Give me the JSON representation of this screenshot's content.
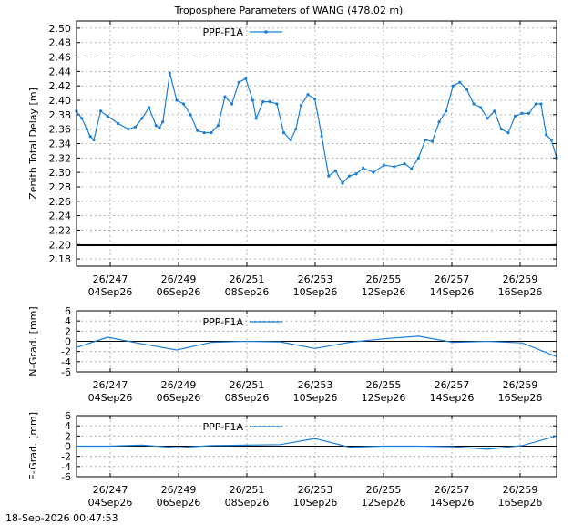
{
  "title": "Troposphere Parameters of WANG (478.02 m)",
  "timestamp": "18-Sep-2026 00:47:53",
  "colors": {
    "series": "#1a7ed6",
    "axis": "#000000",
    "grid": "#a0a0a0",
    "ref": "#000000"
  },
  "x_ticks": [
    {
      "doy": "26/247",
      "date": "04Sep26"
    },
    {
      "doy": "26/249",
      "date": "06Sep26"
    },
    {
      "doy": "26/251",
      "date": "08Sep26"
    },
    {
      "doy": "26/253",
      "date": "10Sep26"
    },
    {
      "doy": "26/255",
      "date": "12Sep26"
    },
    {
      "doy": "26/257",
      "date": "14Sep26"
    },
    {
      "doy": "26/259",
      "date": "16Sep26"
    }
  ],
  "chart_data": [
    {
      "type": "line",
      "ylabel": "Zenith Total Delay [m]",
      "xlim": [
        246.1,
        260.0
      ],
      "ylim": [
        2.17,
        2.51
      ],
      "yticks": [
        2.18,
        2.2,
        2.22,
        2.24,
        2.26,
        2.28,
        2.3,
        2.32,
        2.34,
        2.36,
        2.38,
        2.4,
        2.42,
        2.44,
        2.46,
        2.48,
        2.5
      ],
      "grid": true,
      "legend": "top-center",
      "reference_line": 2.199,
      "series": [
        {
          "name": "PPP-F1A",
          "marker": "point",
          "x": [
            246.1,
            246.25,
            246.4,
            246.5,
            246.6,
            246.8,
            247.0,
            247.3,
            247.6,
            247.8,
            248.0,
            248.2,
            248.4,
            248.5,
            248.6,
            248.8,
            249.0,
            249.2,
            249.4,
            249.6,
            249.8,
            250.0,
            250.2,
            250.4,
            250.6,
            250.8,
            251.0,
            251.2,
            251.3,
            251.5,
            251.7,
            251.9,
            252.1,
            252.3,
            252.45,
            252.6,
            252.8,
            253.0,
            253.2,
            253.4,
            253.6,
            253.8,
            254.0,
            254.2,
            254.4,
            254.7,
            255.0,
            255.3,
            255.6,
            255.8,
            256.0,
            256.2,
            256.4,
            256.6,
            256.8,
            257.0,
            257.2,
            257.4,
            257.6,
            257.8,
            258.0,
            258.2,
            258.4,
            258.6,
            258.8,
            259.0,
            259.2,
            259.4,
            259.55,
            259.7,
            259.85,
            260.0
          ],
          "y": [
            2.385,
            2.375,
            2.36,
            2.35,
            2.345,
            2.385,
            2.378,
            2.368,
            2.36,
            2.363,
            2.375,
            2.39,
            2.365,
            2.362,
            2.37,
            2.438,
            2.4,
            2.395,
            2.38,
            2.358,
            2.355,
            2.355,
            2.365,
            2.405,
            2.395,
            2.425,
            2.43,
            2.4,
            2.375,
            2.398,
            2.398,
            2.395,
            2.355,
            2.345,
            2.36,
            2.393,
            2.408,
            2.402,
            2.35,
            2.295,
            2.302,
            2.285,
            2.295,
            2.298,
            2.306,
            2.3,
            2.31,
            2.308,
            2.312,
            2.305,
            2.32,
            2.345,
            2.343,
            2.37,
            2.385,
            2.42,
            2.425,
            2.415,
            2.395,
            2.39,
            2.375,
            2.385,
            2.36,
            2.355,
            2.378,
            2.382,
            2.382,
            2.395,
            2.395,
            2.352,
            2.345,
            2.32
          ]
        }
      ]
    },
    {
      "type": "line",
      "ylabel": "N-Grad. [mm]",
      "xlim": [
        246.1,
        260.0
      ],
      "ylim": [
        -6,
        6
      ],
      "yticks": [
        -6,
        -4,
        -2,
        0,
        2,
        4,
        6
      ],
      "grid": true,
      "legend": "top-center",
      "reference_line": 0,
      "series": [
        {
          "name": "PPP-F1A",
          "x": [
            246.1,
            247.0,
            248.0,
            249.0,
            250.0,
            251.0,
            252.0,
            253.0,
            254.0,
            255.0,
            256.0,
            257.0,
            258.0,
            259.0,
            260.0
          ],
          "y": [
            -1.2,
            0.8,
            -0.5,
            -1.7,
            -0.2,
            0.0,
            -0.1,
            -1.4,
            -0.2,
            0.5,
            1.0,
            -0.2,
            0.0,
            -0.3,
            -3.0
          ]
        }
      ]
    },
    {
      "type": "line",
      "ylabel": "E-Grad. [mm]",
      "xlim": [
        246.1,
        260.0
      ],
      "ylim": [
        -6,
        6
      ],
      "yticks": [
        -6,
        -4,
        -2,
        0,
        2,
        4,
        6
      ],
      "grid": true,
      "legend": "top-center",
      "reference_line": 0,
      "series": [
        {
          "name": "PPP-F1A",
          "x": [
            246.1,
            247.0,
            248.0,
            249.0,
            250.0,
            251.0,
            252.0,
            253.0,
            254.0,
            255.0,
            256.0,
            257.0,
            258.0,
            259.0,
            260.0
          ],
          "y": [
            0.0,
            0.0,
            0.2,
            -0.3,
            0.1,
            0.2,
            0.3,
            1.5,
            -0.2,
            0.0,
            0.0,
            -0.1,
            -0.6,
            0.1,
            2.0
          ]
        }
      ]
    }
  ]
}
